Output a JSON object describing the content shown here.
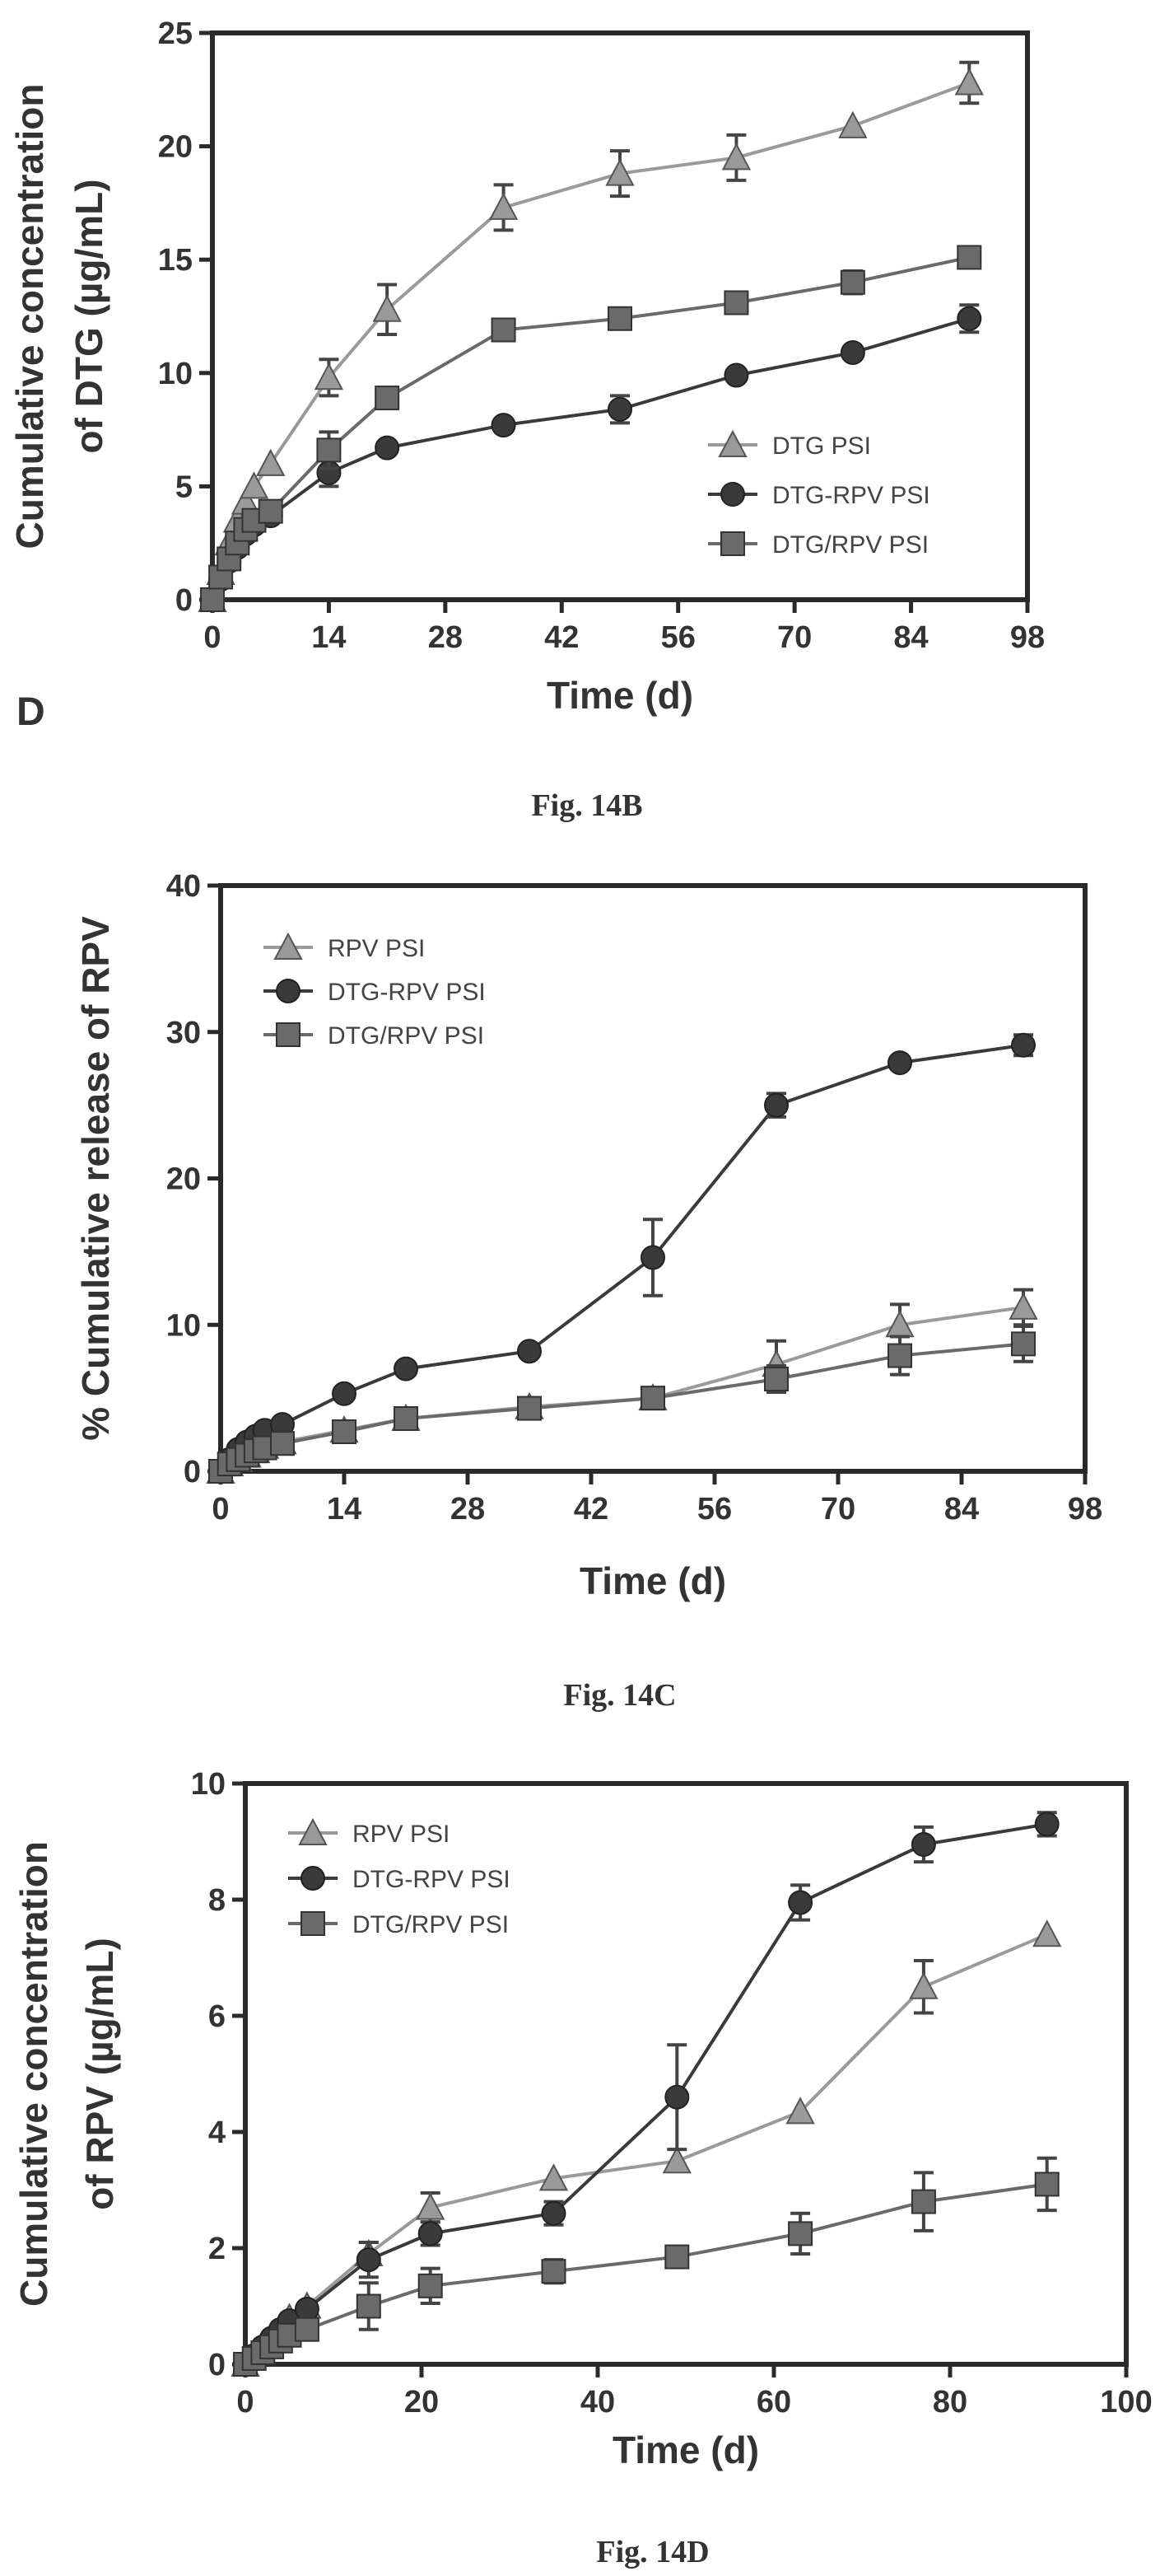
{
  "panel_letter": "D",
  "chart_data": [
    {
      "type": "line",
      "caption": "Fig. 14B",
      "title": "",
      "xlabel": "Time (d)",
      "ylabel": [
        "Cumulative concentration",
        "of DTG (µg/mL)"
      ],
      "xlim": [
        0,
        98
      ],
      "ylim": [
        0,
        25
      ],
      "xticks": [
        0,
        14,
        28,
        42,
        56,
        70,
        84,
        98
      ],
      "yticks": [
        0,
        5,
        10,
        15,
        20,
        25
      ],
      "legend_position": "lower-right",
      "series": [
        {
          "name": "DTG PSI",
          "marker": "triangle",
          "color": "#9a9a9a",
          "x": [
            0,
            1,
            2,
            3,
            4,
            5,
            7,
            14,
            21,
            35,
            49,
            63,
            77,
            91
          ],
          "y": [
            0,
            1.2,
            2.5,
            3.5,
            4.3,
            5.0,
            6.0,
            9.8,
            12.8,
            17.3,
            18.8,
            19.5,
            20.9,
            22.8
          ],
          "err": [
            0,
            0,
            0,
            0,
            0,
            0,
            0,
            0.8,
            1.1,
            1.0,
            1.0,
            1.0,
            0,
            0.9
          ]
        },
        {
          "name": "DTG-RPV PSI",
          "marker": "circle",
          "color": "#3a3a3a",
          "x": [
            0,
            1,
            2,
            3,
            4,
            5,
            7,
            14,
            21,
            35,
            49,
            63,
            77,
            91
          ],
          "y": [
            0,
            0.9,
            1.7,
            2.3,
            2.9,
            3.3,
            3.7,
            5.6,
            6.7,
            7.7,
            8.4,
            9.9,
            10.9,
            12.4
          ],
          "err": [
            0,
            0,
            0,
            0,
            0,
            0,
            0,
            0.6,
            0,
            0,
            0.6,
            0,
            0,
            0.6
          ]
        },
        {
          "name": "DTG/RPV PSI",
          "marker": "square",
          "color": "#6a6a6a",
          "x": [
            0,
            1,
            2,
            3,
            4,
            5,
            7,
            14,
            21,
            35,
            49,
            63,
            77,
            91
          ],
          "y": [
            0,
            1.0,
            1.8,
            2.5,
            3.1,
            3.5,
            3.9,
            6.6,
            8.9,
            11.9,
            12.4,
            13.1,
            14.0,
            15.1
          ],
          "err": [
            0,
            0,
            0,
            0,
            0,
            0,
            0,
            0.8,
            0,
            0,
            0,
            0,
            0.5,
            0
          ]
        }
      ]
    },
    {
      "type": "line",
      "caption": "Fig. 14C",
      "title": "",
      "xlabel": "Time (d)",
      "ylabel": [
        "% Cumulative release of RPV"
      ],
      "xlim": [
        0,
        98
      ],
      "ylim": [
        0,
        40
      ],
      "xticks": [
        0,
        14,
        28,
        42,
        56,
        70,
        84,
        98
      ],
      "yticks": [
        0,
        10,
        20,
        30,
        40
      ],
      "legend_position": "top-left",
      "series": [
        {
          "name": "RPV PSI",
          "marker": "triangle",
          "color": "#9a9a9a",
          "x": [
            0,
            1,
            2,
            3,
            4,
            5,
            7,
            14,
            21,
            35,
            49,
            63,
            77,
            91
          ],
          "y": [
            0,
            0.5,
            0.8,
            1.1,
            1.4,
            1.7,
            2.0,
            2.8,
            3.6,
            4.4,
            5.0,
            7.3,
            10.0,
            11.2
          ],
          "err": [
            0,
            0,
            0,
            0,
            0,
            0,
            0,
            0.5,
            0,
            0,
            0,
            1.6,
            1.4,
            1.2
          ]
        },
        {
          "name": "DTG-RPV PSI",
          "marker": "circle",
          "color": "#3a3a3a",
          "x": [
            0,
            1,
            2,
            3,
            4,
            5,
            7,
            14,
            21,
            35,
            49,
            63,
            77,
            91
          ],
          "y": [
            0,
            0.8,
            1.5,
            2.0,
            2.4,
            2.8,
            3.2,
            5.3,
            7.0,
            8.2,
            14.6,
            25.0,
            27.9,
            29.1
          ],
          "err": [
            0,
            0,
            0,
            0,
            0,
            0,
            0,
            0,
            0,
            0,
            2.6,
            0.8,
            0,
            0.7
          ]
        },
        {
          "name": "DTG/RPV PSI",
          "marker": "square",
          "color": "#6a6a6a",
          "x": [
            0,
            1,
            2,
            3,
            4,
            5,
            7,
            14,
            21,
            35,
            49,
            63,
            77,
            91
          ],
          "y": [
            0,
            0.5,
            0.8,
            1.1,
            1.4,
            1.6,
            1.9,
            2.7,
            3.6,
            4.3,
            5.0,
            6.3,
            7.9,
            8.7
          ],
          "err": [
            0,
            0,
            0,
            0,
            0,
            0,
            0,
            0.6,
            0,
            0,
            0,
            0.9,
            1.3,
            1.2
          ]
        }
      ]
    },
    {
      "type": "line",
      "caption": "Fig. 14D",
      "title": "",
      "xlabel": "Time (d)",
      "ylabel": [
        "Cumulative concentration",
        "of RPV (µg/mL)"
      ],
      "xlim": [
        0,
        100
      ],
      "ylim": [
        0,
        10
      ],
      "xticks": [
        0,
        20,
        40,
        60,
        80,
        100
      ],
      "yticks": [
        0,
        2,
        4,
        6,
        8,
        10
      ],
      "legend_position": "top-left",
      "series": [
        {
          "name": "RPV PSI",
          "marker": "triangle",
          "color": "#9a9a9a",
          "x": [
            0,
            1,
            2,
            3,
            4,
            5,
            7,
            14,
            21,
            35,
            49,
            63,
            77,
            91
          ],
          "y": [
            0,
            0.2,
            0.35,
            0.5,
            0.65,
            0.8,
            1.0,
            1.9,
            2.7,
            3.2,
            3.5,
            4.35,
            6.5,
            7.4
          ],
          "err": [
            0,
            0,
            0,
            0,
            0,
            0,
            0,
            0.2,
            0.25,
            0,
            0,
            0,
            0.45,
            0
          ]
        },
        {
          "name": "DTG-RPV PSI",
          "marker": "circle",
          "color": "#3a3a3a",
          "x": [
            0,
            1,
            2,
            3,
            4,
            5,
            7,
            14,
            21,
            35,
            49,
            63,
            77,
            91
          ],
          "y": [
            0,
            0.15,
            0.3,
            0.45,
            0.6,
            0.75,
            0.95,
            1.8,
            2.25,
            2.6,
            4.6,
            7.95,
            8.95,
            9.3
          ],
          "err": [
            0,
            0,
            0,
            0,
            0,
            0,
            0,
            0.3,
            0.2,
            0.2,
            0.9,
            0.3,
            0.3,
            0.2
          ]
        },
        {
          "name": "DTG/RPV PSI",
          "marker": "square",
          "color": "#6a6a6a",
          "x": [
            0,
            1,
            2,
            3,
            4,
            5,
            7,
            14,
            21,
            35,
            49,
            63,
            77,
            91
          ],
          "y": [
            0,
            0.1,
            0.2,
            0.3,
            0.4,
            0.5,
            0.6,
            1.0,
            1.35,
            1.6,
            1.85,
            2.25,
            2.8,
            3.1
          ],
          "err": [
            0,
            0,
            0,
            0,
            0,
            0,
            0,
            0.4,
            0.3,
            0.2,
            0,
            0.35,
            0.5,
            0.45
          ]
        }
      ]
    }
  ]
}
